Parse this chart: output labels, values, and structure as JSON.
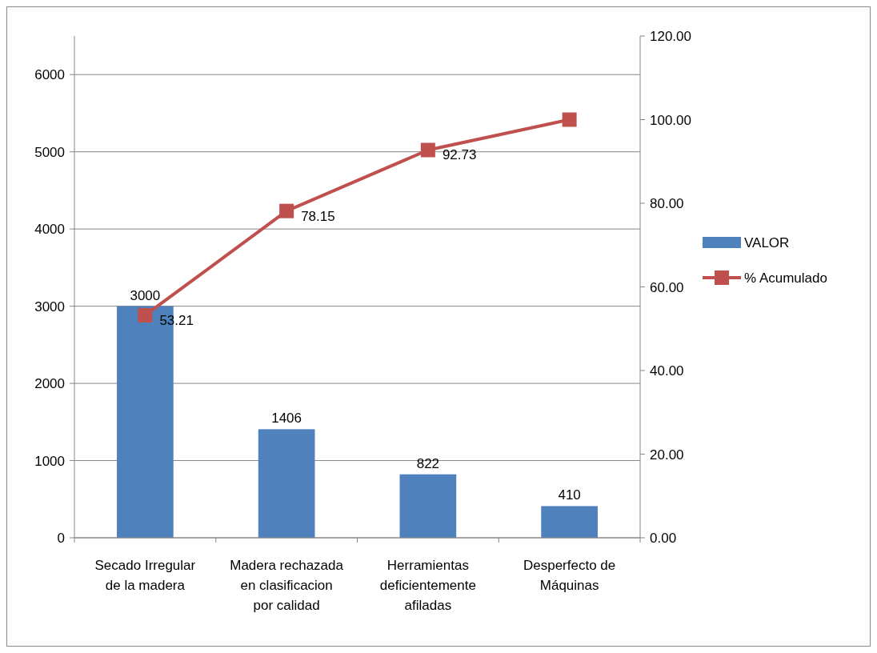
{
  "chart_data": {
    "type": "bar",
    "categories": [
      "Secado Irregular de la madera",
      "Madera rechazada en clasificacion por calidad",
      "Herramientas deficientemente afiladas",
      "Desperfecto de Máquinas"
    ],
    "series": [
      {
        "name": "VALOR",
        "color": "#4f81bd",
        "values": [
          3000,
          1406,
          822,
          410
        ],
        "value_labels": [
          "3000",
          "1406",
          "822",
          "410"
        ]
      },
      {
        "name": "% Acumulado",
        "type": "line",
        "axis": "y2",
        "color": "#c0504d",
        "marker": "square",
        "values": [
          53.21,
          78.15,
          92.73,
          100
        ],
        "value_labels": [
          "53.21",
          "78.15",
          "92.73",
          null
        ]
      }
    ],
    "ylim": [
      0,
      6500
    ],
    "yticks": [
      0,
      1000,
      2000,
      3000,
      4000,
      5000,
      6000
    ],
    "y2lim": [
      0,
      120
    ],
    "y2ticks": [
      {
        "value": 0,
        "label": "0.00"
      },
      {
        "value": 20,
        "label": "20.00"
      },
      {
        "value": 40,
        "label": "40.00"
      },
      {
        "value": 60,
        "label": "60.00"
      },
      {
        "value": 80,
        "label": "80.00"
      },
      {
        "value": 100,
        "label": "100.00"
      },
      {
        "value": 120,
        "label": "120.00"
      }
    ],
    "grid": "y",
    "legend": "right"
  }
}
